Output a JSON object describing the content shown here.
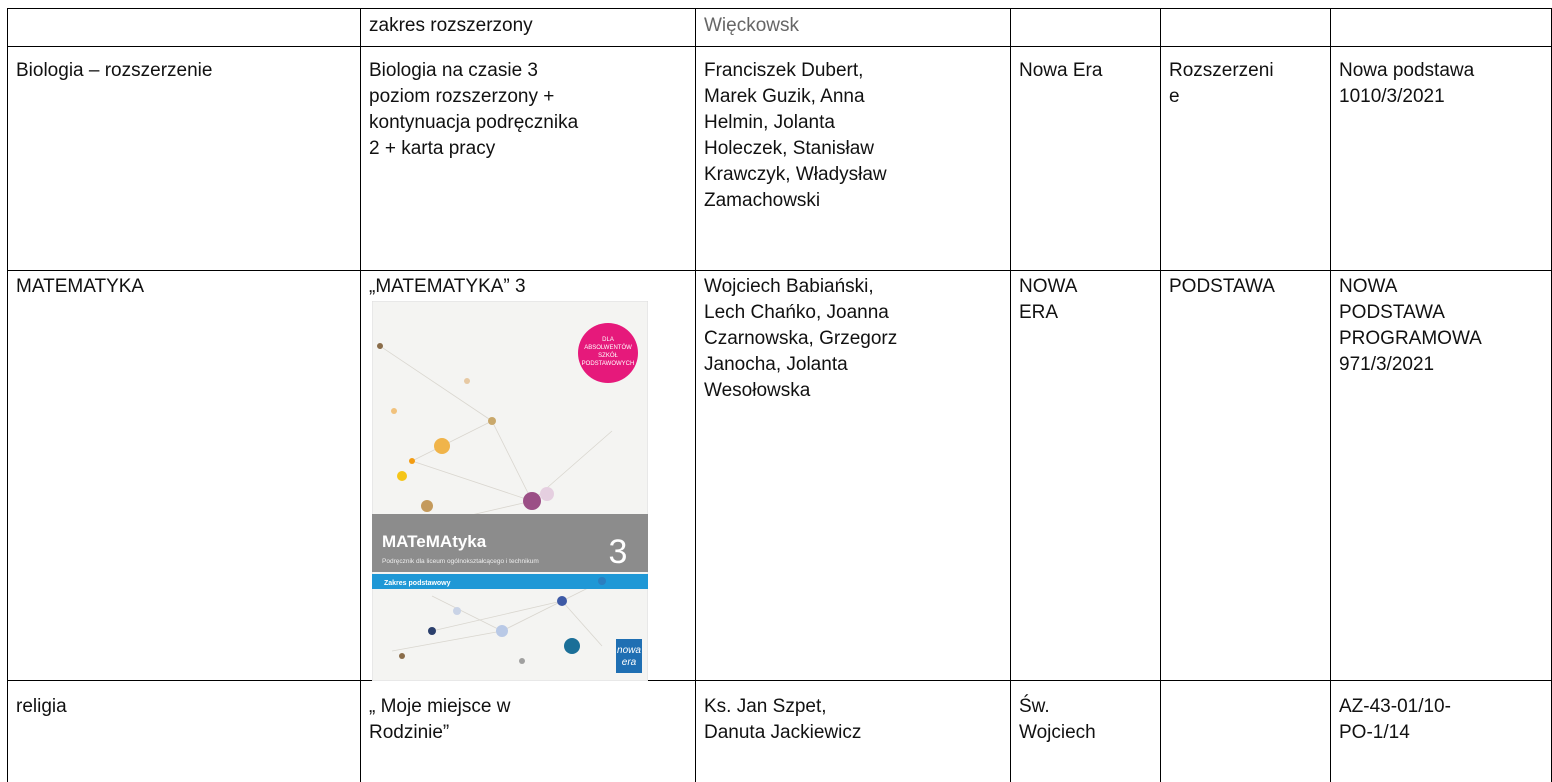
{
  "table": {
    "rows": [
      [
        [],
        [
          "zakres rozszerzony"
        ],
        [
          "Więckowsk"
        ],
        [],
        [],
        []
      ],
      [
        [
          "Biologia – rozszerzenie"
        ],
        [
          "Biologia na czasie 3",
          "poziom rozszerzony +",
          "kontynuacja podręcznika",
          "2 + karta pracy"
        ],
        [
          "Franciszek Dubert,",
          "Marek Guzik, Anna",
          "Helmin, Jolanta",
          "Holeczek, Stanisław",
          "Krawczyk, Władysław",
          "Zamachowski"
        ],
        [
          "Nowa Era"
        ],
        [
          "Rozszerzeni",
          "e"
        ],
        [
          "Nowa podstawa",
          "1010/3/2021"
        ]
      ],
      [
        [
          "MATEMATYKA"
        ],
        [
          "„MATEMATYKA” 3"
        ],
        [
          "Wojciech Babiański,",
          "Lech Chańko, Joanna",
          "Czarnowska, Grzegorz",
          "Janocha, Jolanta",
          "Wesołowska"
        ],
        [
          "NOWA",
          "ERA"
        ],
        [
          "PODSTAWA"
        ],
        [
          "NOWA",
          "PODSTAWA",
          "PROGRAMOWA",
          "971/3/2021"
        ]
      ],
      [
        [
          "religia"
        ],
        [
          "„ Moje miejsce w",
          "Rodzinie”"
        ],
        [
          "Ks. Jan Szpet,",
          "Danuta Jackiewicz"
        ],
        [
          "Św.",
          "Wojciech"
        ],
        [],
        [
          "AZ-43-01/10-",
          "PO-1/14"
        ]
      ]
    ]
  },
  "cover": {
    "badge": [
      "DLA",
      "ABSOLWENTÓW",
      "SZKÓŁ",
      "PODSTAWOWYCH"
    ],
    "title": "MATeMAtyka",
    "number": "3",
    "subtitle": "Podręcznik dla liceum ogólnokształcącego i technikum",
    "range": "Zakres podstawowy",
    "logo": [
      "nowa",
      "era"
    ]
  }
}
